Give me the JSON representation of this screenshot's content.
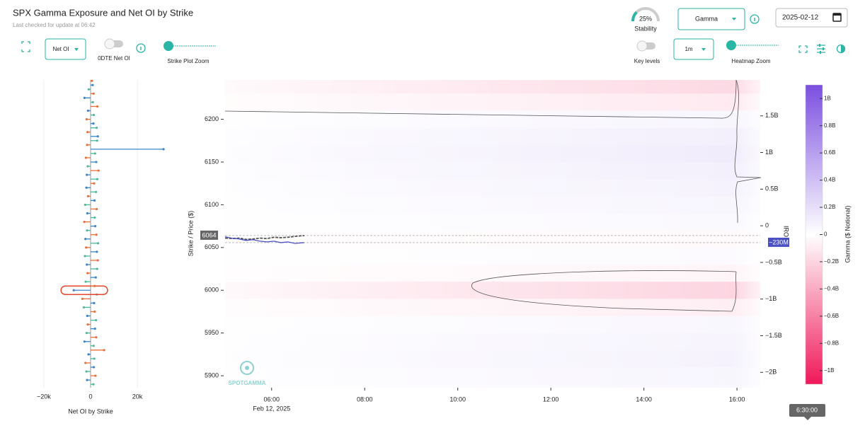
{
  "header": {
    "title": "SPX Gamma Exposure and Net OI by Strike",
    "subtitle": "Last checked for update at 06:42",
    "stability": {
      "value": 25,
      "label": "25%",
      "caption": "Stability"
    },
    "metric": "Gamma",
    "date": "2025-02-12"
  },
  "controls": {
    "oi_mode": "Net OI",
    "odte_label": "0DTE Net OI",
    "strike_zoom": "Strike Plot Zoom",
    "key_levels": "Key levels",
    "interval": "1m",
    "heatmap_zoom": "Heatmap Zoom"
  },
  "chart_data": [
    {
      "type": "bar",
      "orientation": "horizontal",
      "x_label": "Net OI by Strike",
      "strikes": [
        5890,
        5895,
        5900,
        5905,
        5910,
        5915,
        5920,
        5925,
        5930,
        5935,
        5940,
        5945,
        5950,
        5955,
        5960,
        5965,
        5970,
        5975,
        5980,
        5985,
        5990,
        5995,
        6000,
        6005,
        6010,
        6015,
        6020,
        6025,
        6030,
        6035,
        6040,
        6045,
        6050,
        6055,
        6060,
        6065,
        6070,
        6075,
        6080,
        6085,
        6090,
        6095,
        6100,
        6105,
        6110,
        6115,
        6120,
        6125,
        6130,
        6135,
        6140,
        6145,
        6150,
        6155,
        6160,
        6165,
        6170,
        6175,
        6180,
        6185,
        6190,
        6195,
        6200,
        6205,
        6210,
        6215,
        6220,
        6225,
        6230,
        6235,
        6240,
        6245
      ],
      "values": [
        1200,
        -1500,
        2100,
        -1800,
        1400,
        -2200,
        1600,
        -900,
        5800,
        1300,
        -2600,
        2400,
        -1700,
        1900,
        -1200,
        2300,
        -1400,
        1800,
        -2900,
        1500,
        -3500,
        2600,
        -7200,
        1700,
        -2100,
        2200,
        -1300,
        2800,
        -1600,
        3100,
        -2400,
        2700,
        -1900,
        3200,
        -2200,
        2500,
        -1500,
        2000,
        -2700,
        1800,
        -1400,
        2600,
        -2300,
        1700,
        -1100,
        2300,
        -1800,
        1500,
        2900,
        -1600,
        3400,
        -1200,
        2400,
        -2000,
        1900,
        31200,
        -1500,
        2800,
        3100,
        -1300,
        2600,
        1200,
        -1700,
        1400,
        -1100,
        2900,
        1000,
        -2600,
        1300,
        -800,
        900,
        600
      ],
      "colors": [
        "#4bb89a",
        "#3a86c8",
        "#e8703a"
      ],
      "highlight_strike": 6000,
      "highlight_color": "#e8452a",
      "xlim": [
        -23600,
        32400
      ],
      "xticks": [
        {
          "value": -20000,
          "label": "−20k"
        },
        0,
        {
          "value": 20000,
          "label": "20k"
        }
      ],
      "ylim": [
        5886,
        6246
      ],
      "grid": true
    },
    {
      "type": "heatmap",
      "y_label": "Strike / Price ($)",
      "y2_label": "IRO",
      "xlim": [
        5,
        16.5
      ],
      "xticks": [
        {
          "value": 6,
          "label": "06:00"
        },
        {
          "value": 8,
          "label": "08:00"
        },
        {
          "value": 10,
          "label": "10:00"
        },
        {
          "value": 12,
          "label": "12:00"
        },
        {
          "value": 14,
          "label": "14:00"
        },
        {
          "value": 16,
          "label": "16:00"
        }
      ],
      "date_label": "Feb 12, 2025",
      "ylim": [
        5886,
        6246
      ],
      "yticks": [
        5900,
        5950,
        6000,
        6050,
        6100,
        6150,
        6200
      ],
      "y2lim": [
        -2.21,
        1.99
      ],
      "y2ticks": [
        {
          "value": -2,
          "label": "−2B"
        },
        {
          "value": -1.5,
          "label": "−1.5B"
        },
        {
          "value": -1,
          "label": "−1B"
        },
        {
          "value": -0.5,
          "label": "−0.5B"
        },
        0,
        {
          "value": 0.5,
          "label": "0.5B"
        },
        {
          "value": 1,
          "label": "1B"
        },
        {
          "value": 1.5,
          "label": "1.5B"
        }
      ],
      "pos_color": "#7b4fe0",
      "neg_color": "#f0185a",
      "rows": {
        "strikes": [
          5880,
          5900,
          5920,
          5940,
          5960,
          5980,
          6000,
          6020,
          6040,
          6060,
          6080,
          6100,
          6120,
          6140,
          6160,
          6180,
          6200,
          6220,
          6240
        ],
        "values": [
          0.05,
          0.06,
          0.08,
          0.07,
          0.05,
          -0.08,
          -0.2,
          -0.05,
          0.03,
          -0.03,
          0.04,
          0.06,
          0.08,
          0.1,
          0.12,
          0.1,
          0.06,
          -0.1,
          -0.18
        ]
      },
      "price": {
        "color": "#555555",
        "x": [
          5.0,
          5.15,
          5.3,
          5.45,
          5.6,
          5.75,
          5.9,
          6.05,
          6.2,
          6.35,
          6.5,
          6.7
        ],
        "values": [
          6061,
          6060.5,
          6061,
          6059.5,
          6060,
          6061,
          6060.5,
          6062,
          6061.5,
          6062,
          6063,
          6064
        ]
      },
      "gamma": {
        "axis": "y2",
        "color": "#4a4fc4",
        "x": [
          5.0,
          5.15,
          5.3,
          5.45,
          5.6,
          5.75,
          5.9,
          6.05,
          6.2,
          6.35,
          6.5,
          6.7
        ],
        "values": [
          -0.15,
          -0.17,
          -0.18,
          -0.2,
          -0.19,
          -0.21,
          -0.22,
          -0.21,
          -0.23,
          -0.22,
          -0.24,
          -0.23
        ]
      },
      "price_last": 6064,
      "gamma_last": {
        "value": -0.23,
        "label": "−230M"
      },
      "colorbar": {
        "label": "Gamma ($ Notional)",
        "lim": [
          -1.1,
          1.1
        ],
        "ticks": [
          {
            "value": 1,
            "label": "1B"
          },
          {
            "value": 0.8,
            "label": "0.8B"
          },
          {
            "value": 0.6,
            "label": "0.6B"
          },
          {
            "value": 0.4,
            "label": "0.4B"
          },
          {
            "value": 0.2,
            "label": "0.2B"
          },
          0,
          {
            "value": -0.2,
            "label": "−0.2B"
          },
          {
            "value": -0.4,
            "label": "−0.4B"
          },
          {
            "value": -0.6,
            "label": "−0.6B"
          },
          {
            "value": -0.8,
            "label": "−0.8B"
          },
          {
            "value": -1,
            "label": "−1B"
          }
        ]
      },
      "watermark": "SPOTGAMMA",
      "tooltip": "6:30:00"
    }
  ]
}
